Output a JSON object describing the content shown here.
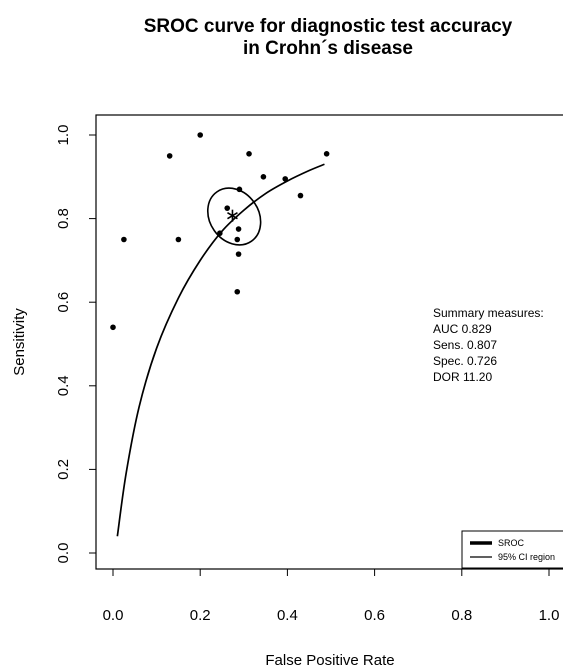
{
  "chart_data": {
    "type": "scatter",
    "title_lines": [
      "SROC curve for diagnostic test accuracy",
      "in Crohn´s disease"
    ],
    "xlabel": "False Positive Rate",
    "ylabel": "Sensitivity",
    "xlim": [
      0,
      1
    ],
    "ylim": [
      0,
      1
    ],
    "x_ticks": [
      "0.0",
      "0.2",
      "0.4",
      "0.6",
      "0.8",
      "1.0"
    ],
    "y_ticks": [
      "0.0",
      "0.2",
      "0.4",
      "0.6",
      "0.8",
      "1.0"
    ],
    "studies": [
      {
        "x": 0.0,
        "y": 0.54
      },
      {
        "x": 0.025,
        "y": 0.75
      },
      {
        "x": 0.13,
        "y": 0.95
      },
      {
        "x": 0.15,
        "y": 0.75
      },
      {
        "x": 0.2,
        "y": 1.0
      },
      {
        "x": 0.245,
        "y": 0.765
      },
      {
        "x": 0.262,
        "y": 0.825
      },
      {
        "x": 0.285,
        "y": 0.75
      },
      {
        "x": 0.288,
        "y": 0.775
      },
      {
        "x": 0.288,
        "y": 0.715
      },
      {
        "x": 0.29,
        "y": 0.87
      },
      {
        "x": 0.285,
        "y": 0.625
      },
      {
        "x": 0.312,
        "y": 0.955
      },
      {
        "x": 0.345,
        "y": 0.9
      },
      {
        "x": 0.395,
        "y": 0.895
      },
      {
        "x": 0.43,
        "y": 0.855
      },
      {
        "x": 0.49,
        "y": 0.955
      }
    ],
    "summary_point": {
      "x": 0.274,
      "y": 0.807
    },
    "sroc_curve": [
      {
        "x": 0.01,
        "y": 0.04
      },
      {
        "x": 0.03,
        "y": 0.19
      },
      {
        "x": 0.06,
        "y": 0.35
      },
      {
        "x": 0.1,
        "y": 0.49
      },
      {
        "x": 0.15,
        "y": 0.61
      },
      {
        "x": 0.2,
        "y": 0.7
      },
      {
        "x": 0.25,
        "y": 0.77
      },
      {
        "x": 0.3,
        "y": 0.82
      },
      {
        "x": 0.35,
        "y": 0.86
      },
      {
        "x": 0.4,
        "y": 0.89
      },
      {
        "x": 0.45,
        "y": 0.915
      },
      {
        "x": 0.485,
        "y": 0.93
      }
    ],
    "confidence_region": {
      "center_x": 0.278,
      "center_y": 0.805,
      "radius_x": 0.056,
      "radius_y": 0.072,
      "rotation_deg": -35
    },
    "annotation_lines": [
      "Summary measures:",
      "AUC 0.829",
      "Sens. 0.807",
      "Spec. 0.726",
      "DOR 11.20"
    ],
    "legend": {
      "position": "bottom-right",
      "entries": [
        "SROC",
        "95% CI region"
      ]
    }
  }
}
